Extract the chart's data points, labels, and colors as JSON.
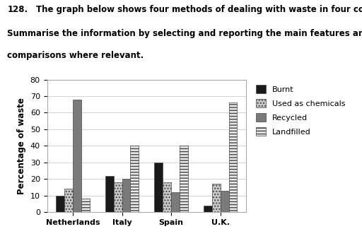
{
  "countries": [
    "Netherlands",
    "Italy",
    "Spain",
    "U.K."
  ],
  "categories": [
    "Burnt",
    "Used as chemicals",
    "Recycled",
    "Landfilled"
  ],
  "values": {
    "Burnt": [
      10,
      22,
      30,
      4
    ],
    "Used as chemicals": [
      14,
      18,
      18,
      17
    ],
    "Recycled": [
      68,
      20,
      12,
      13
    ],
    "Landfilled": [
      8,
      40,
      40,
      66
    ]
  },
  "bar_colors": [
    "#1a1a1a",
    "#c8c8c8",
    "#7a7a7a",
    "#e8e8e8"
  ],
  "bar_hatches": [
    null,
    "....",
    null,
    "----"
  ],
  "ylabel": "Percentage of waste",
  "ylim": [
    0,
    80
  ],
  "yticks": [
    0,
    10,
    20,
    30,
    40,
    50,
    60,
    70,
    80
  ],
  "title_number": "128.",
  "title_line1": "The graph below shows four methods of dealing with waste in four countries.",
  "title_line2": "Summarise the information by selecting and reporting the main features and make",
  "title_line3": "comparisons where relevant.",
  "legend_labels": [
    "Burnt",
    "Used as chemicals",
    "Recycled",
    "Landfilled"
  ],
  "legend_fontsize": 8,
  "axis_label_fontsize": 8.5,
  "tick_fontsize": 8,
  "background_color": "#ffffff"
}
